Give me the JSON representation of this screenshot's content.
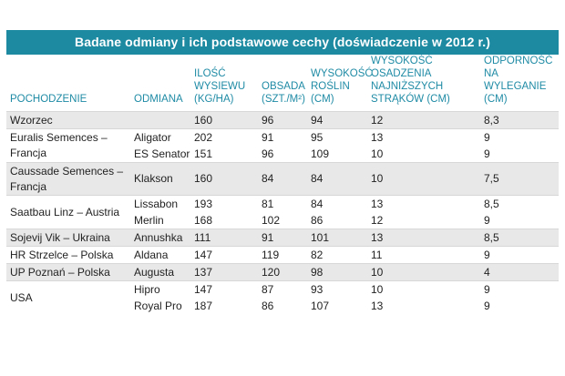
{
  "title": "Badane odmiany i ich podstawowe cechy (doświadczenie w 2012 r.)",
  "headers": {
    "pochodzenie": "POCHODZENIE",
    "odmiana": "ODMIANA",
    "ilosc": [
      "ILOŚĆ WYSIEWU",
      "(KG/HA)"
    ],
    "obsada": [
      "OBSADA",
      "(SZT./M²)"
    ],
    "wysokosc": [
      "WYSOKOŚĆ",
      "ROŚLIN",
      "(CM)"
    ],
    "osadzenie": [
      "WYSOKOŚĆ OSADZENIA",
      "NAJNIŻSZYCH",
      "STRĄKÓW (CM)"
    ],
    "odpornosc": [
      "ODPORNOŚĆ",
      "NA WYLEGANIE",
      "(CM)"
    ]
  },
  "groups": [
    {
      "origin": [
        "Wzorzec"
      ],
      "rows": [
        {
          "variety": "",
          "values": [
            "160",
            "96",
            "94",
            "12",
            "8,3"
          ]
        }
      ]
    },
    {
      "origin": [
        "Euralis Semences – Francja"
      ],
      "rows": [
        {
          "variety": "Aligator",
          "values": [
            "202",
            "91",
            "95",
            "13",
            "9"
          ]
        },
        {
          "variety": "ES Senator",
          "values": [
            "151",
            "96",
            "109",
            "10",
            "9"
          ]
        }
      ]
    },
    {
      "origin": [
        "Caussade Semences –",
        "Francja"
      ],
      "rows": [
        {
          "variety": "Klakson",
          "values": [
            "160",
            "84",
            "84",
            "10",
            "7,5"
          ]
        }
      ]
    },
    {
      "origin": [
        "Saatbau Linz – Austria"
      ],
      "rows": [
        {
          "variety": "Lissabon",
          "values": [
            "193",
            "81",
            "84",
            "13",
            "8,5"
          ]
        },
        {
          "variety": "Merlin",
          "values": [
            "168",
            "102",
            "86",
            "12",
            "9"
          ]
        }
      ]
    },
    {
      "origin": [
        "Sojevij Vik – Ukraina"
      ],
      "rows": [
        {
          "variety": "Annushka",
          "values": [
            "111",
            "91",
            "101",
            "13",
            "8,5"
          ]
        }
      ]
    },
    {
      "origin": [
        "HR Strzelce – Polska"
      ],
      "rows": [
        {
          "variety": "Aldana",
          "values": [
            "147",
            "119",
            "82",
            "11",
            "9"
          ]
        }
      ]
    },
    {
      "origin": [
        "UP Poznań – Polska"
      ],
      "rows": [
        {
          "variety": "Augusta",
          "values": [
            "137",
            "120",
            "98",
            "10",
            "4"
          ]
        }
      ]
    },
    {
      "origin": [
        "USA"
      ],
      "rows": [
        {
          "variety": "Hipro",
          "values": [
            "147",
            "87",
            "93",
            "10",
            "9"
          ]
        },
        {
          "variety": "Royal Pro",
          "values": [
            "187",
            "86",
            "107",
            "13",
            "9"
          ]
        }
      ]
    }
  ],
  "colors": {
    "title_bg": "#1d8aa2",
    "header_text": "#1f8ba5",
    "row_shade": "#e8e8e8"
  }
}
